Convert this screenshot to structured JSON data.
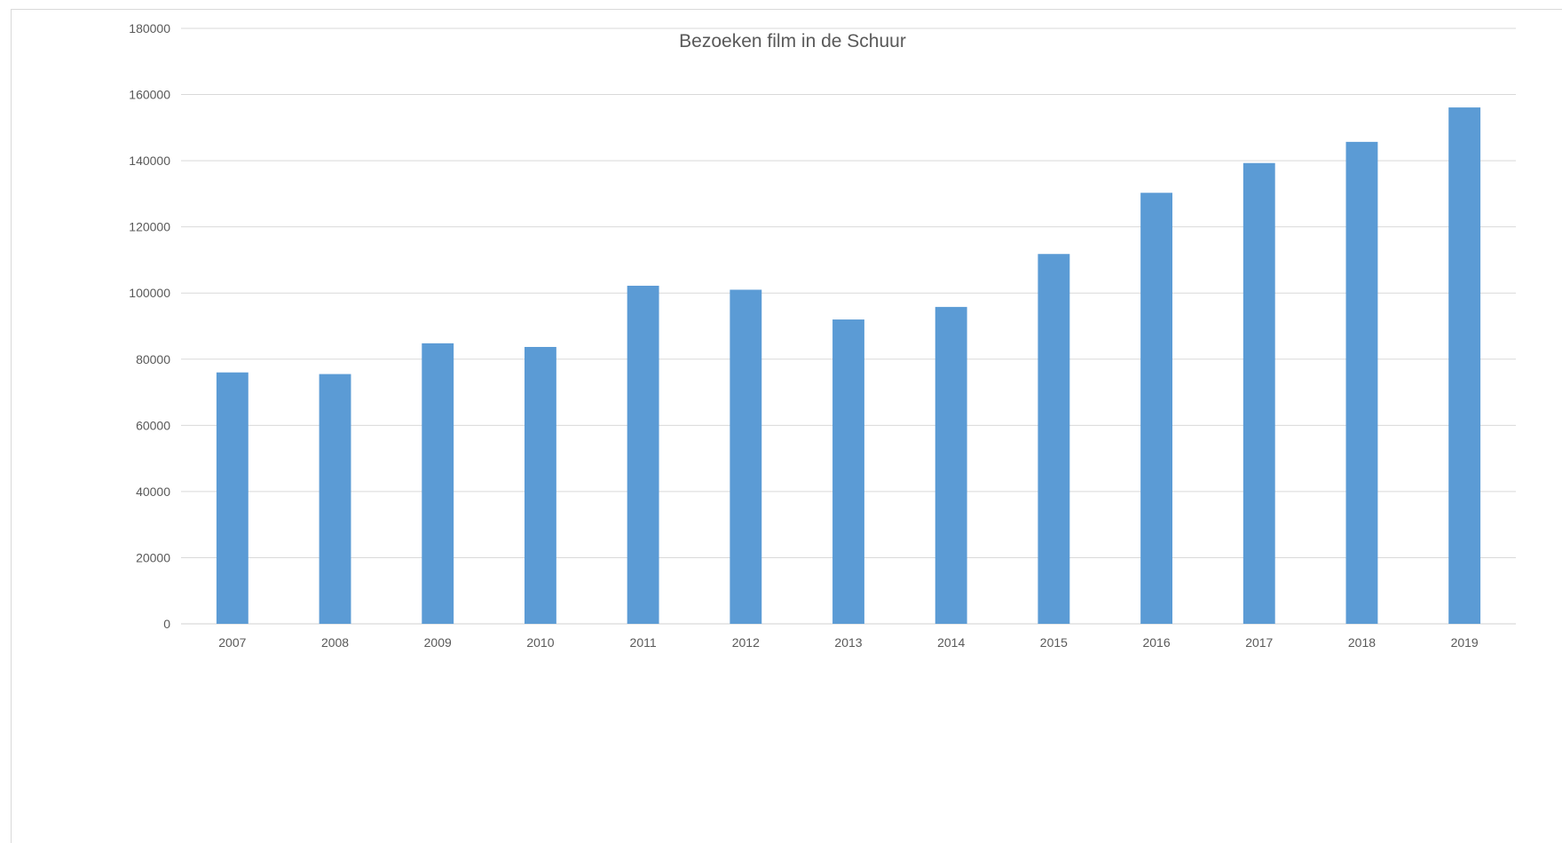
{
  "chart_data": {
    "type": "bar",
    "title": "Bezoeken  film in de Schuur",
    "xlabel": "",
    "ylabel": "",
    "categories": [
      "2007",
      "2008",
      "2009",
      "2010",
      "2011",
      "2012",
      "2013",
      "2014",
      "2015",
      "2016",
      "2017",
      "2018",
      "2019"
    ],
    "series": [
      {
        "values": [
          76000,
          75500,
          84800,
          83700,
          102200,
          101000,
          92000,
          95800,
          111800,
          130300,
          139300,
          145700,
          156100
        ],
        "color": "#5b9bd5"
      }
    ],
    "ylim": [
      0,
      180000
    ],
    "yticks": [
      "0",
      "20000",
      "40000",
      "60000",
      "80000",
      "100000",
      "120000",
      "140000",
      "160000",
      "180000"
    ],
    "grid": true,
    "legend": "none",
    "gridline_color": "#d9d9d9",
    "text_color": "#595959"
  }
}
